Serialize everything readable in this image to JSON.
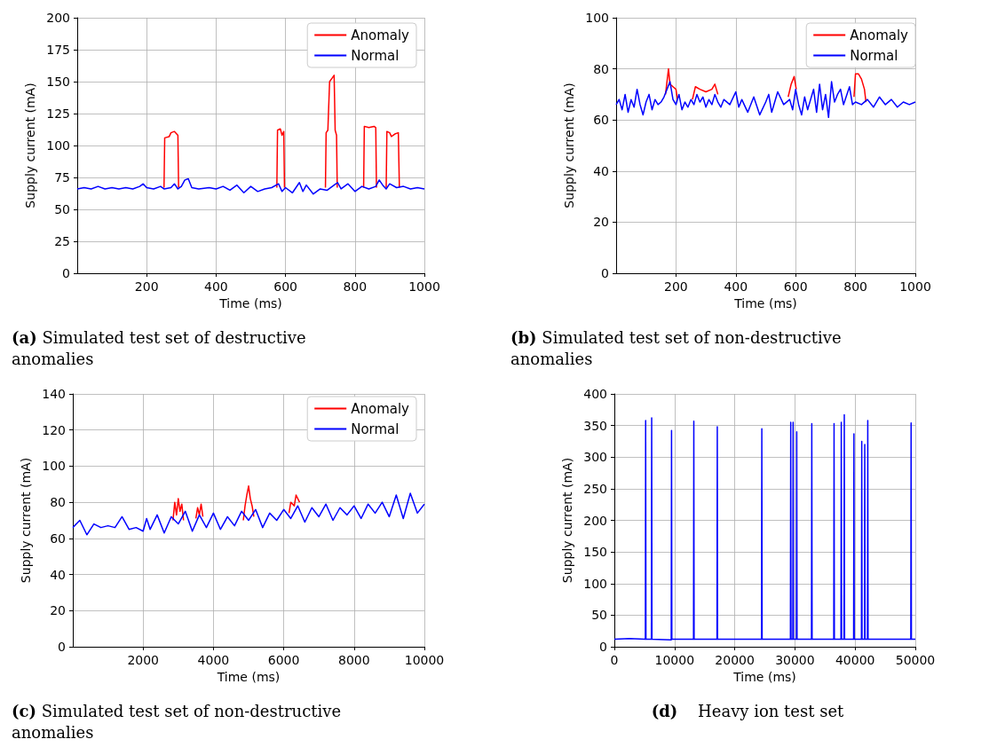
{
  "chart_data": [
    {
      "type": "line",
      "title": "(a) Simulated test set of destructive anomalies",
      "xlabel": "Time (ms)",
      "ylabel": "Supply current (mA)",
      "xlim": [
        0,
        1000
      ],
      "xticks": [
        200,
        400,
        600,
        800,
        1000
      ],
      "ylim": [
        0,
        200
      ],
      "yticks": [
        0,
        25,
        50,
        75,
        100,
        125,
        150,
        175,
        200
      ],
      "grid": true,
      "legend": "top right",
      "marker": "none",
      "line_style": "solid",
      "series": [
        {
          "name": "Anomaly",
          "color": "#ff0000",
          "x": [
            250,
            252,
            265,
            270,
            280,
            290,
            292,
            400,
            575,
            577,
            585,
            590,
            595,
            597,
            650,
            715,
            717,
            722,
            727,
            735,
            740,
            743,
            747,
            749,
            800,
            825,
            827,
            840,
            855,
            860,
            862,
            875,
            890,
            892,
            900,
            905,
            915,
            925,
            928
          ],
          "values": [
            67,
            106,
            107,
            110,
            111,
            108,
            67,
            null,
            67,
            112,
            113,
            108,
            111,
            67,
            null,
            67,
            110,
            112,
            150,
            153,
            155,
            112,
            108,
            67,
            null,
            67,
            115,
            114,
            115,
            114,
            67,
            null,
            67,
            111,
            110,
            107,
            109,
            110,
            67
          ]
        },
        {
          "name": "Normal",
          "color": "#0000ff",
          "x": [
            0,
            20,
            40,
            60,
            80,
            100,
            120,
            140,
            160,
            180,
            190,
            200,
            220,
            240,
            250,
            270,
            280,
            290,
            300,
            310,
            320,
            330,
            350,
            380,
            400,
            420,
            440,
            460,
            480,
            500,
            520,
            540,
            560,
            580,
            590,
            600,
            620,
            640,
            650,
            660,
            680,
            700,
            720,
            740,
            750,
            760,
            780,
            800,
            820,
            840,
            860,
            870,
            880,
            890,
            900,
            920,
            940,
            960,
            980,
            1000
          ],
          "values": [
            66,
            67,
            66,
            68,
            66,
            67,
            66,
            67,
            66,
            68,
            70,
            67,
            66,
            68,
            66,
            67,
            70,
            66,
            68,
            73,
            74,
            67,
            66,
            67,
            66,
            68,
            65,
            69,
            63,
            68,
            64,
            66,
            67,
            70,
            64,
            67,
            63,
            71,
            64,
            69,
            62,
            66,
            65,
            69,
            71,
            66,
            70,
            64,
            68,
            66,
            68,
            73,
            69,
            66,
            70,
            67,
            68,
            66,
            67,
            66
          ]
        }
      ]
    },
    {
      "type": "line",
      "title": "(b) Simulated test set of non-destructive anomalies",
      "xlabel": "Time (ms)",
      "ylabel": "Supply current (mA)",
      "xlim": [
        0,
        1000
      ],
      "xticks": [
        200,
        400,
        600,
        800,
        1000
      ],
      "ylim": [
        0,
        100
      ],
      "yticks": [
        0,
        20,
        40,
        60,
        80,
        100
      ],
      "grid": true,
      "legend": "top right",
      "marker": "none",
      "line_style": "solid",
      "series": [
        {
          "name": "Anomaly",
          "color": "#ff0000",
          "x": [
            165,
            175,
            180,
            190,
            200,
            205,
            230,
            255,
            265,
            280,
            300,
            320,
            330,
            340,
            500,
            575,
            585,
            595,
            602,
            700,
            795,
            800,
            810,
            820,
            830,
            835
          ],
          "values": [
            70,
            80,
            74,
            73,
            72,
            68,
            null,
            68,
            73,
            72,
            71,
            72,
            74,
            70,
            null,
            69,
            74,
            77,
            72,
            null,
            69,
            78,
            78,
            76,
            72,
            67
          ]
        },
        {
          "name": "Normal",
          "color": "#0000ff",
          "x": [
            0,
            10,
            20,
            30,
            40,
            50,
            60,
            70,
            80,
            90,
            100,
            110,
            120,
            130,
            140,
            150,
            160,
            170,
            180,
            190,
            200,
            210,
            220,
            230,
            240,
            250,
            260,
            270,
            280,
            290,
            300,
            310,
            320,
            330,
            340,
            350,
            360,
            380,
            400,
            410,
            420,
            440,
            460,
            480,
            500,
            510,
            520,
            540,
            560,
            580,
            590,
            600,
            610,
            620,
            630,
            640,
            660,
            670,
            680,
            690,
            700,
            710,
            720,
            730,
            740,
            750,
            760,
            780,
            790,
            800,
            820,
            840,
            860,
            880,
            900,
            920,
            940,
            960,
            980,
            1000
          ],
          "values": [
            66,
            68,
            64,
            70,
            63,
            68,
            65,
            72,
            66,
            62,
            67,
            70,
            64,
            68,
            66,
            67,
            69,
            72,
            75,
            68,
            66,
            70,
            64,
            67,
            65,
            68,
            66,
            70,
            67,
            69,
            65,
            68,
            66,
            70,
            67,
            65,
            68,
            66,
            71,
            65,
            68,
            63,
            69,
            62,
            67,
            70,
            63,
            71,
            66,
            68,
            64,
            72,
            66,
            62,
            69,
            64,
            72,
            63,
            74,
            64,
            70,
            61,
            75,
            67,
            70,
            72,
            66,
            73,
            66,
            67,
            66,
            68,
            65,
            69,
            66,
            68,
            65,
            67,
            66,
            67
          ]
        }
      ]
    },
    {
      "type": "line",
      "title": "(c) Simulated test set of non-destructive anomalies",
      "xlabel": "Time (ms)",
      "ylabel": "Supply current (mA)",
      "xlim": [
        0,
        10000
      ],
      "xticks": [
        2000,
        4000,
        6000,
        8000,
        10000
      ],
      "ylim": [
        0,
        140
      ],
      "yticks": [
        0,
        20,
        40,
        60,
        80,
        100,
        120,
        140
      ],
      "grid": true,
      "legend": "top right",
      "marker": "none",
      "line_style": "solid",
      "series": [
        {
          "name": "Anomaly",
          "color": "#ff0000",
          "x": [
            2850,
            2900,
            2950,
            3000,
            3050,
            3100,
            3150,
            3300,
            3500,
            3550,
            3600,
            3650,
            3700,
            4000,
            4850,
            4900,
            4950,
            5000,
            5050,
            5100,
            5150,
            5500,
            6150,
            6200,
            6300,
            6350,
            6450
          ],
          "values": [
            70,
            80,
            73,
            82,
            75,
            79,
            70,
            null,
            71,
            77,
            73,
            79,
            72,
            null,
            70,
            78,
            84,
            89,
            82,
            78,
            72,
            null,
            74,
            80,
            78,
            84,
            80
          ]
        },
        {
          "name": "Normal",
          "color": "#0000ff",
          "x": [
            0,
            200,
            400,
            600,
            800,
            1000,
            1200,
            1400,
            1600,
            1800,
            2000,
            2100,
            2200,
            2400,
            2600,
            2800,
            3000,
            3200,
            3400,
            3600,
            3800,
            4000,
            4200,
            4400,
            4600,
            4800,
            5000,
            5200,
            5400,
            5600,
            5800,
            6000,
            6200,
            6400,
            6600,
            6800,
            7000,
            7200,
            7400,
            7600,
            7800,
            8000,
            8200,
            8400,
            8600,
            8800,
            9000,
            9200,
            9400,
            9600,
            9800,
            10000
          ],
          "values": [
            66,
            70,
            62,
            68,
            66,
            67,
            66,
            72,
            65,
            66,
            64,
            71,
            65,
            73,
            63,
            72,
            68,
            75,
            64,
            73,
            66,
            74,
            65,
            72,
            67,
            75,
            70,
            76,
            66,
            74,
            70,
            76,
            71,
            78,
            69,
            77,
            72,
            79,
            70,
            77,
            73,
            78,
            71,
            79,
            74,
            80,
            72,
            84,
            71,
            85,
            74,
            79
          ]
        }
      ]
    },
    {
      "type": "line",
      "title": "(d) Heavy ion test set",
      "xlabel": "Time (ms)",
      "ylabel": "Supply current (mA)",
      "xlim": [
        0,
        50000
      ],
      "xticks": [
        0,
        10000,
        20000,
        30000,
        40000,
        50000
      ],
      "ylim": [
        0,
        400
      ],
      "yticks": [
        0,
        50,
        100,
        150,
        200,
        250,
        300,
        350,
        400
      ],
      "grid": true,
      "legend": false,
      "marker": "none",
      "line_style": "solid",
      "series": [
        {
          "color": "#0000ff",
          "x": [
            0,
            2500,
            5150,
            5200,
            5250,
            6150,
            6200,
            6250,
            9450,
            9500,
            9550,
            13150,
            13200,
            13250,
            17050,
            17100,
            17150,
            20000,
            24450,
            24500,
            24550,
            29250,
            29300,
            29350,
            29650,
            29700,
            29750,
            30250,
            30300,
            30350,
            32750,
            32800,
            32850,
            36450,
            36500,
            36550,
            37650,
            37700,
            37750,
            38150,
            38200,
            38250,
            39750,
            39800,
            39850,
            41050,
            41100,
            41150,
            41550,
            41600,
            41650,
            42050,
            42100,
            42150,
            45000,
            49250,
            49300,
            49350,
            50000
          ],
          "values": [
            12,
            13,
            12,
            358,
            12,
            12,
            362,
            12,
            11,
            342,
            12,
            12,
            357,
            12,
            12,
            348,
            12,
            12,
            12,
            345,
            12,
            12,
            355,
            12,
            12,
            355,
            12,
            12,
            340,
            12,
            12,
            353,
            12,
            12,
            353,
            12,
            12,
            355,
            12,
            12,
            367,
            12,
            12,
            337,
            12,
            12,
            325,
            12,
            12,
            320,
            12,
            12,
            358,
            12,
            12,
            12,
            354,
            12,
            12
          ]
        }
      ]
    }
  ]
}
